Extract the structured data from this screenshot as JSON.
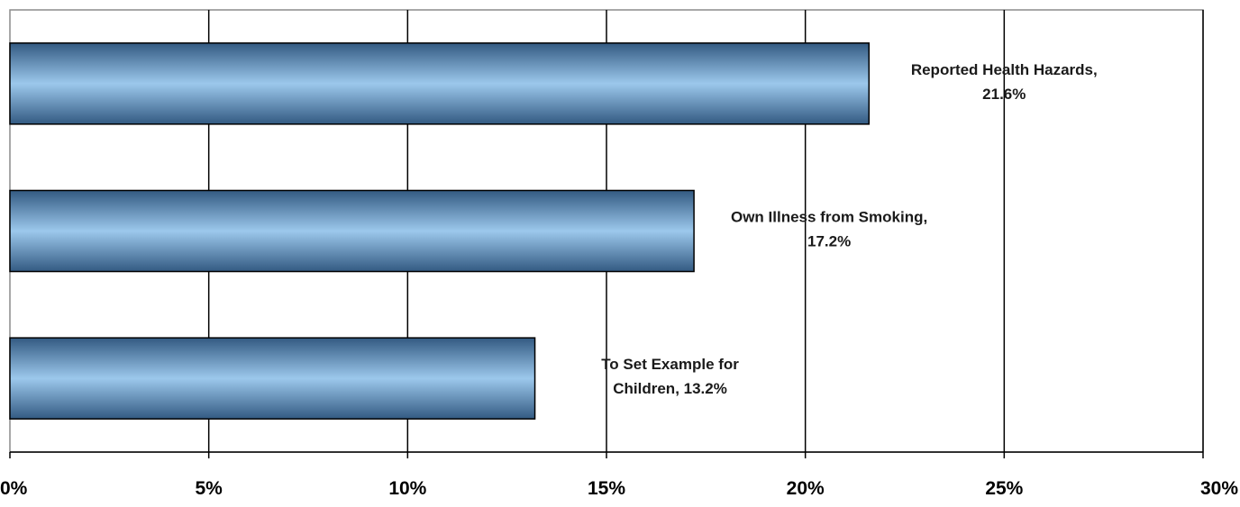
{
  "chart_data": {
    "type": "bar",
    "orientation": "horizontal",
    "categories": [
      "Reported Health Hazards",
      "Own Illness from Smoking",
      "To Set Example for Children"
    ],
    "values": [
      21.6,
      17.2,
      13.2
    ],
    "data_labels": [
      [
        "Reported Health Hazards,",
        "21.6%"
      ],
      [
        "Own Illness from Smoking,",
        "17.2%"
      ],
      [
        "To Set Example for",
        "Children, 13.2%"
      ]
    ],
    "xlim": [
      0,
      30
    ],
    "xticks": [
      0,
      5,
      10,
      15,
      20,
      25,
      30
    ],
    "xtick_labels": [
      "0%",
      "5%",
      "10%",
      "15%",
      "20%",
      "25%",
      "30%"
    ],
    "title": "",
    "xlabel": "",
    "ylabel": "",
    "grid": "vertical",
    "legend": "none",
    "colors": {
      "bar_edge": "#335a82",
      "bar_center": "#9cc8ec",
      "gridline": "#000000",
      "border": "#8c8c8c"
    }
  }
}
